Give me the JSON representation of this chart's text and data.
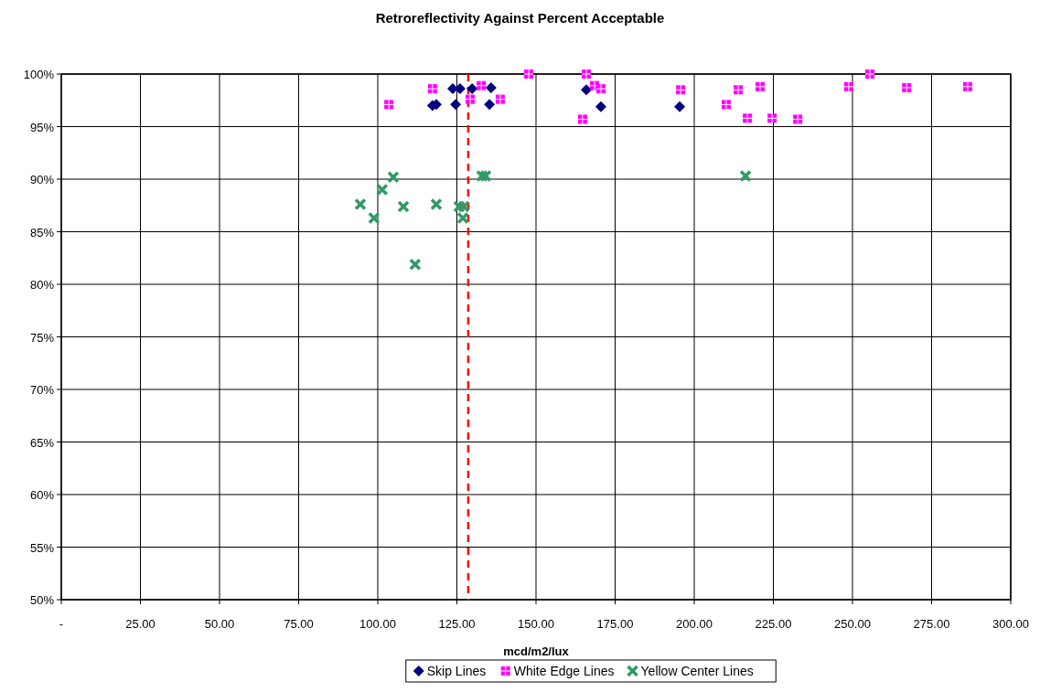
{
  "chart_data": {
    "type": "scatter",
    "title": "Retroreflectivity Against Percent Acceptable",
    "xlabel": "mcd/m2/lux",
    "xlim": [
      0,
      300
    ],
    "xticks": [
      {
        "value": 0,
        "label": "-"
      },
      {
        "value": 25,
        "label": "25.00"
      },
      {
        "value": 50,
        "label": "50.00"
      },
      {
        "value": 75,
        "label": "75.00"
      },
      {
        "value": 100,
        "label": "100.00"
      },
      {
        "value": 125,
        "label": "125.00"
      },
      {
        "value": 150,
        "label": "150.00"
      },
      {
        "value": 175,
        "label": "175.00"
      },
      {
        "value": 200,
        "label": "200.00"
      },
      {
        "value": 225,
        "label": "225.00"
      },
      {
        "value": 250,
        "label": "250.00"
      },
      {
        "value": 275,
        "label": "275.00"
      },
      {
        "value": 300,
        "label": "300.00"
      }
    ],
    "ylim": [
      50,
      100
    ],
    "yticks": [
      {
        "value": 50,
        "label": "50%"
      },
      {
        "value": 55,
        "label": "55%"
      },
      {
        "value": 60,
        "label": "60%"
      },
      {
        "value": 65,
        "label": "65%"
      },
      {
        "value": 70,
        "label": "70%"
      },
      {
        "value": 75,
        "label": "75%"
      },
      {
        "value": 80,
        "label": "80%"
      },
      {
        "value": 85,
        "label": "85%"
      },
      {
        "value": 90,
        "label": "90%"
      },
      {
        "value": 95,
        "label": "95%"
      },
      {
        "value": 100,
        "label": "100%"
      }
    ],
    "grid": true,
    "legend": "bottom",
    "ref_lines": [
      {
        "axis": "x",
        "value": 128.6,
        "color": "#ff0000",
        "line_style": "dashed"
      }
    ],
    "series": [
      {
        "name": "Skip Lines",
        "color": "#000080",
        "marker": "diamond",
        "x": [
          117.3,
          118.5,
          123.7,
          126.0,
          129.8,
          135.8,
          124.6,
          135.3,
          165.9,
          170.5,
          195.4
        ],
        "values": [
          97.0,
          97.1,
          98.6,
          98.6,
          98.6,
          98.7,
          97.1,
          97.1,
          98.5,
          96.9,
          96.9
        ]
      },
      {
        "name": "White Edge Lines",
        "color": "#ff00ff",
        "marker": "square",
        "x": [
          103.5,
          117.3,
          132.7,
          129.2,
          138.7,
          147.7,
          165.9,
          168.5,
          170.5,
          164.7,
          195.7,
          213.9,
          220.8,
          210.1,
          216.8,
          224.6,
          232.7,
          248.8,
          255.5,
          267.1,
          286.4
        ],
        "values": [
          97.1,
          98.6,
          98.9,
          97.6,
          97.6,
          100,
          100,
          98.9,
          98.6,
          95.7,
          98.5,
          98.5,
          98.8,
          97.1,
          95.8,
          95.8,
          95.7,
          98.8,
          100,
          98.7,
          98.8
        ]
      },
      {
        "name": "Yellow Center Lines",
        "color": "#339966",
        "marker": "cross",
        "x": [
          104.9,
          101.4,
          94.5,
          108.1,
          118.5,
          125.7,
          127.2,
          98.8,
          126.9,
          132.9,
          134.1,
          111.8,
          216.2
        ],
        "values": [
          90.2,
          89.0,
          87.6,
          87.4,
          87.6,
          87.4,
          87.4,
          86.3,
          86.3,
          90.3,
          90.3,
          81.9,
          90.3
        ]
      }
    ]
  }
}
